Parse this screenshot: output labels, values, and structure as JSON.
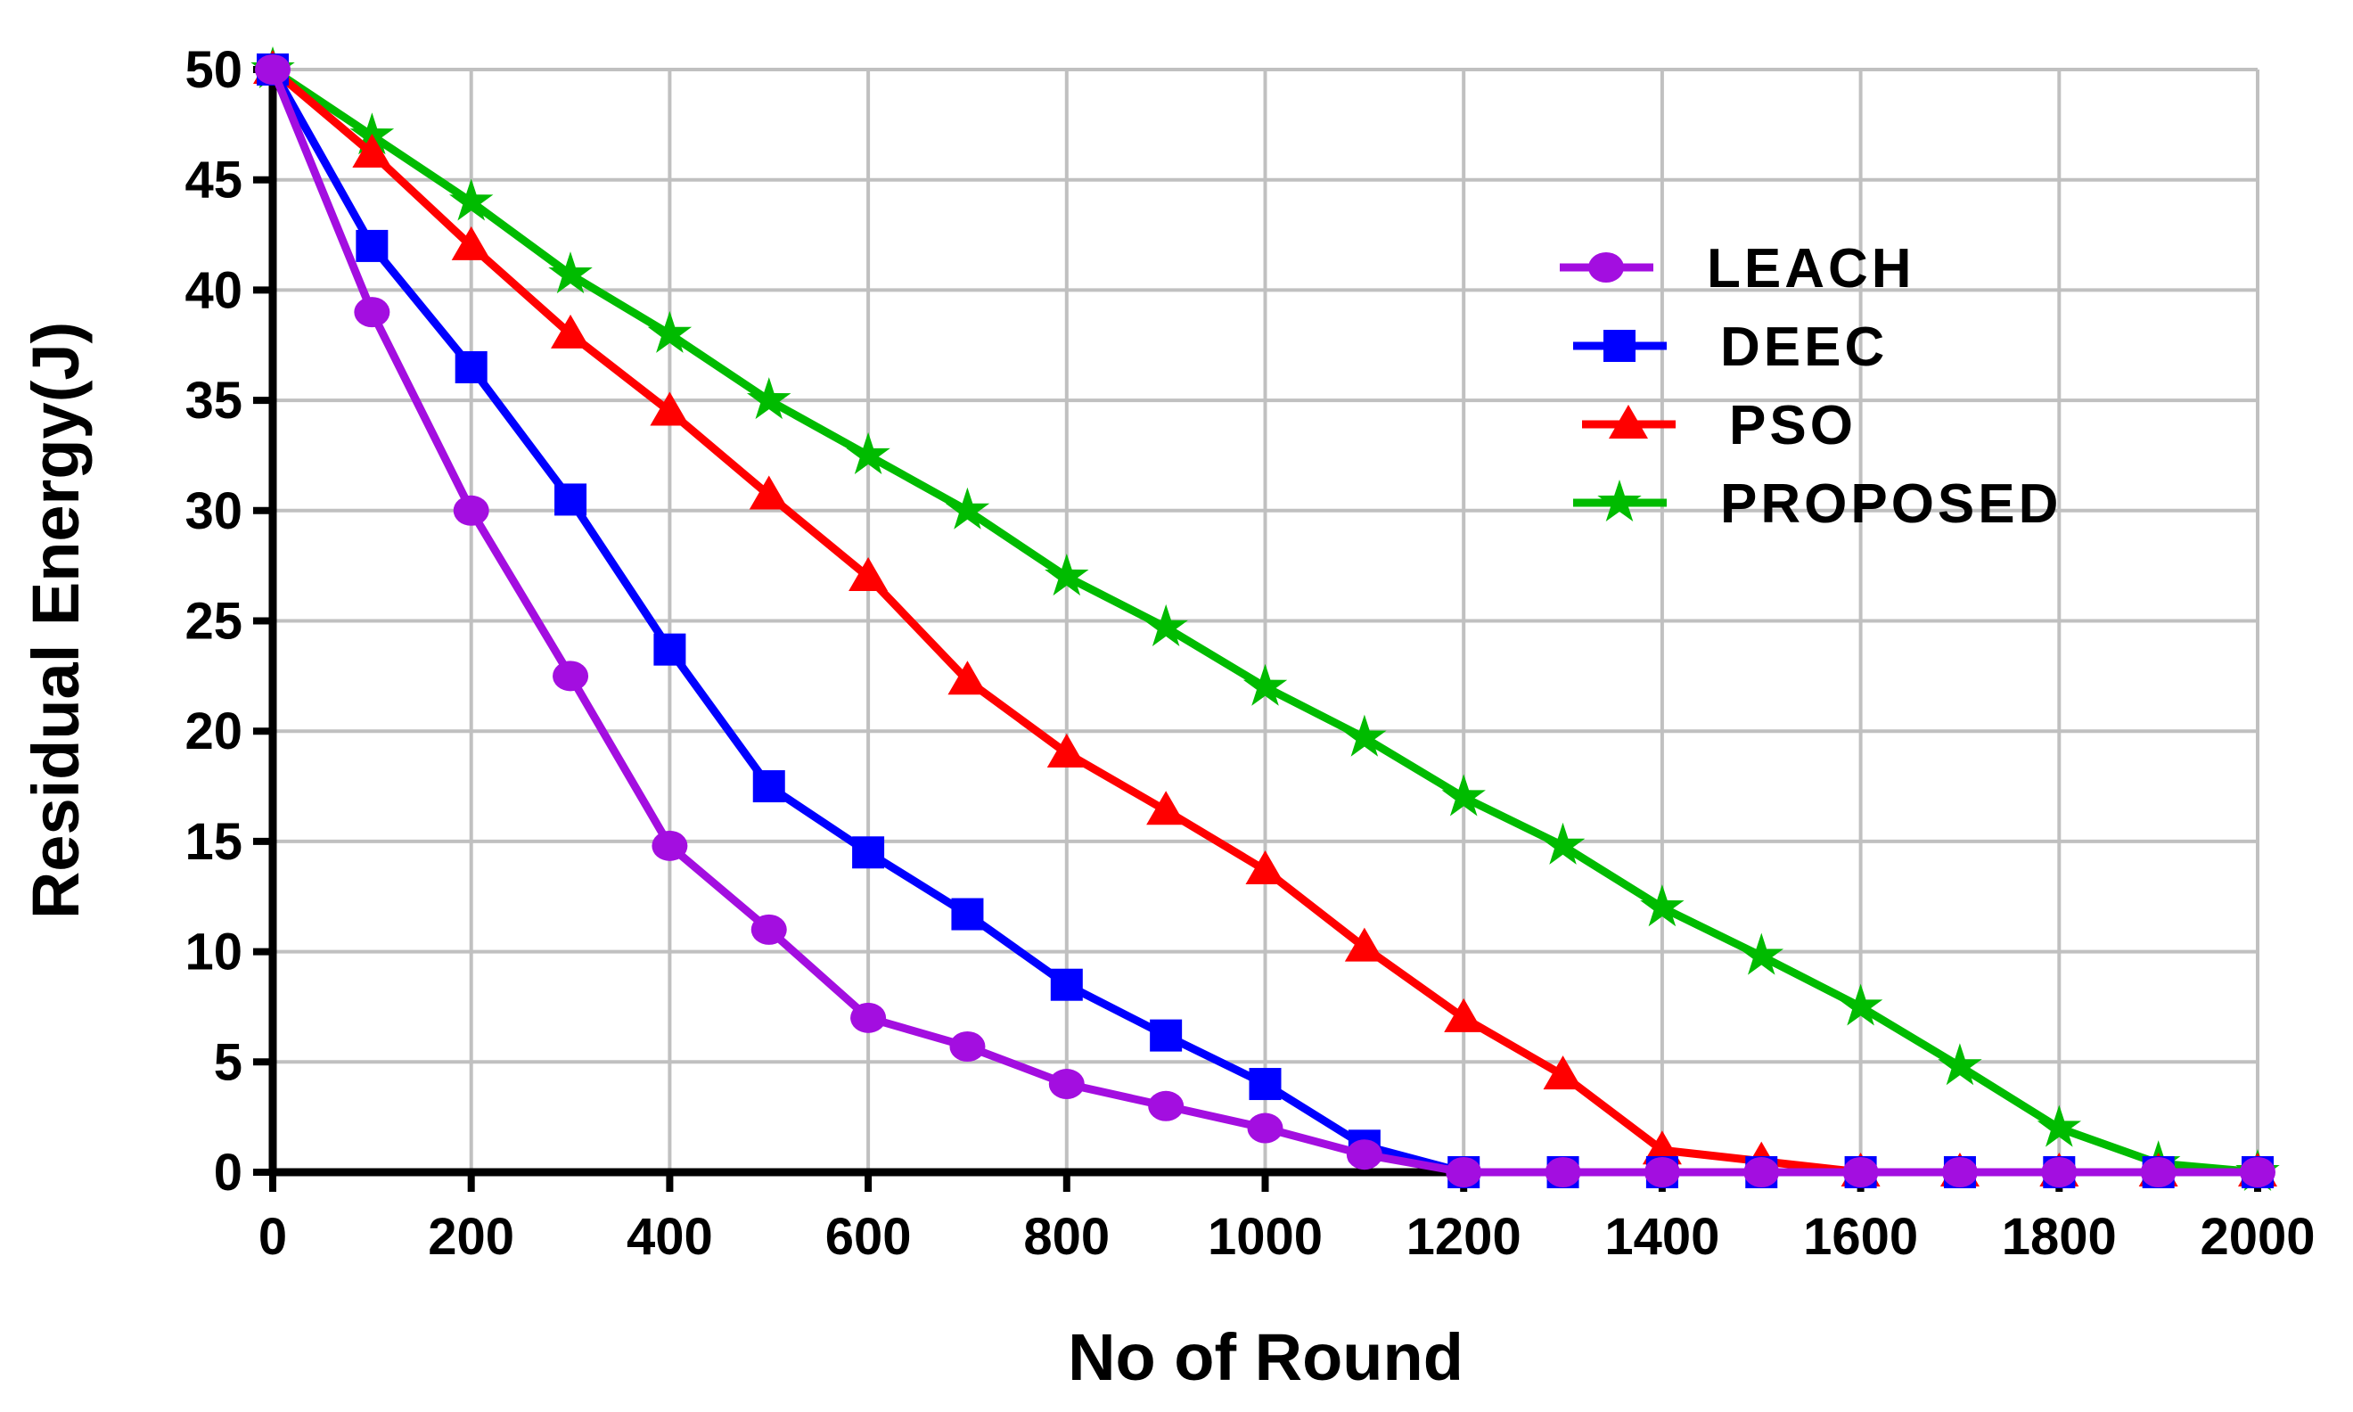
{
  "chart_data": {
    "type": "line",
    "title": "",
    "xlabel": "No of Round",
    "ylabel": "Residual Energy(J)",
    "xlim": [
      0,
      2000
    ],
    "ylim": [
      0,
      50
    ],
    "xticks": [
      0,
      200,
      400,
      600,
      800,
      1000,
      1200,
      1400,
      1600,
      1800,
      2000
    ],
    "yticks": [
      0,
      5,
      10,
      15,
      20,
      25,
      30,
      35,
      40,
      45,
      50
    ],
    "grid": true,
    "legend_position": "top-right",
    "x": [
      0,
      100,
      200,
      300,
      400,
      500,
      600,
      700,
      800,
      900,
      1000,
      1100,
      1200,
      1300,
      1400,
      1500,
      1600,
      1700,
      1800,
      1900,
      2000
    ],
    "series": [
      {
        "name": "LEACH",
        "color": "#a30ee0",
        "marker": "circle",
        "values": [
          50,
          39,
          30,
          22.5,
          14.8,
          11,
          7,
          5.7,
          4,
          3,
          2,
          0.8,
          0,
          0,
          0,
          0,
          0,
          0,
          0,
          0,
          0
        ]
      },
      {
        "name": "DEEC",
        "color": "#0000ff",
        "marker": "square",
        "values": [
          50,
          42,
          36.5,
          30.5,
          23.7,
          17.5,
          14.5,
          11.7,
          8.5,
          6.2,
          4,
          1.2,
          0,
          0,
          0,
          0,
          0,
          0,
          0,
          0,
          0
        ]
      },
      {
        "name": "PSO",
        "color": "#ff0000",
        "marker": "triangle",
        "values": [
          50,
          46.2,
          42,
          38,
          34.5,
          30.7,
          27,
          22.3,
          19,
          16.4,
          13.7,
          10.2,
          7,
          4.4,
          1,
          0.5,
          0,
          0,
          0,
          0,
          0
        ]
      },
      {
        "name": "PROPOSED",
        "color": "#00bb00",
        "marker": "star",
        "values": [
          50,
          47,
          44,
          40.7,
          38,
          35,
          32.5,
          30,
          27,
          24.7,
          22,
          19.7,
          17,
          14.8,
          12,
          9.8,
          7.5,
          4.8,
          2,
          0.4,
          0
        ]
      }
    ]
  }
}
